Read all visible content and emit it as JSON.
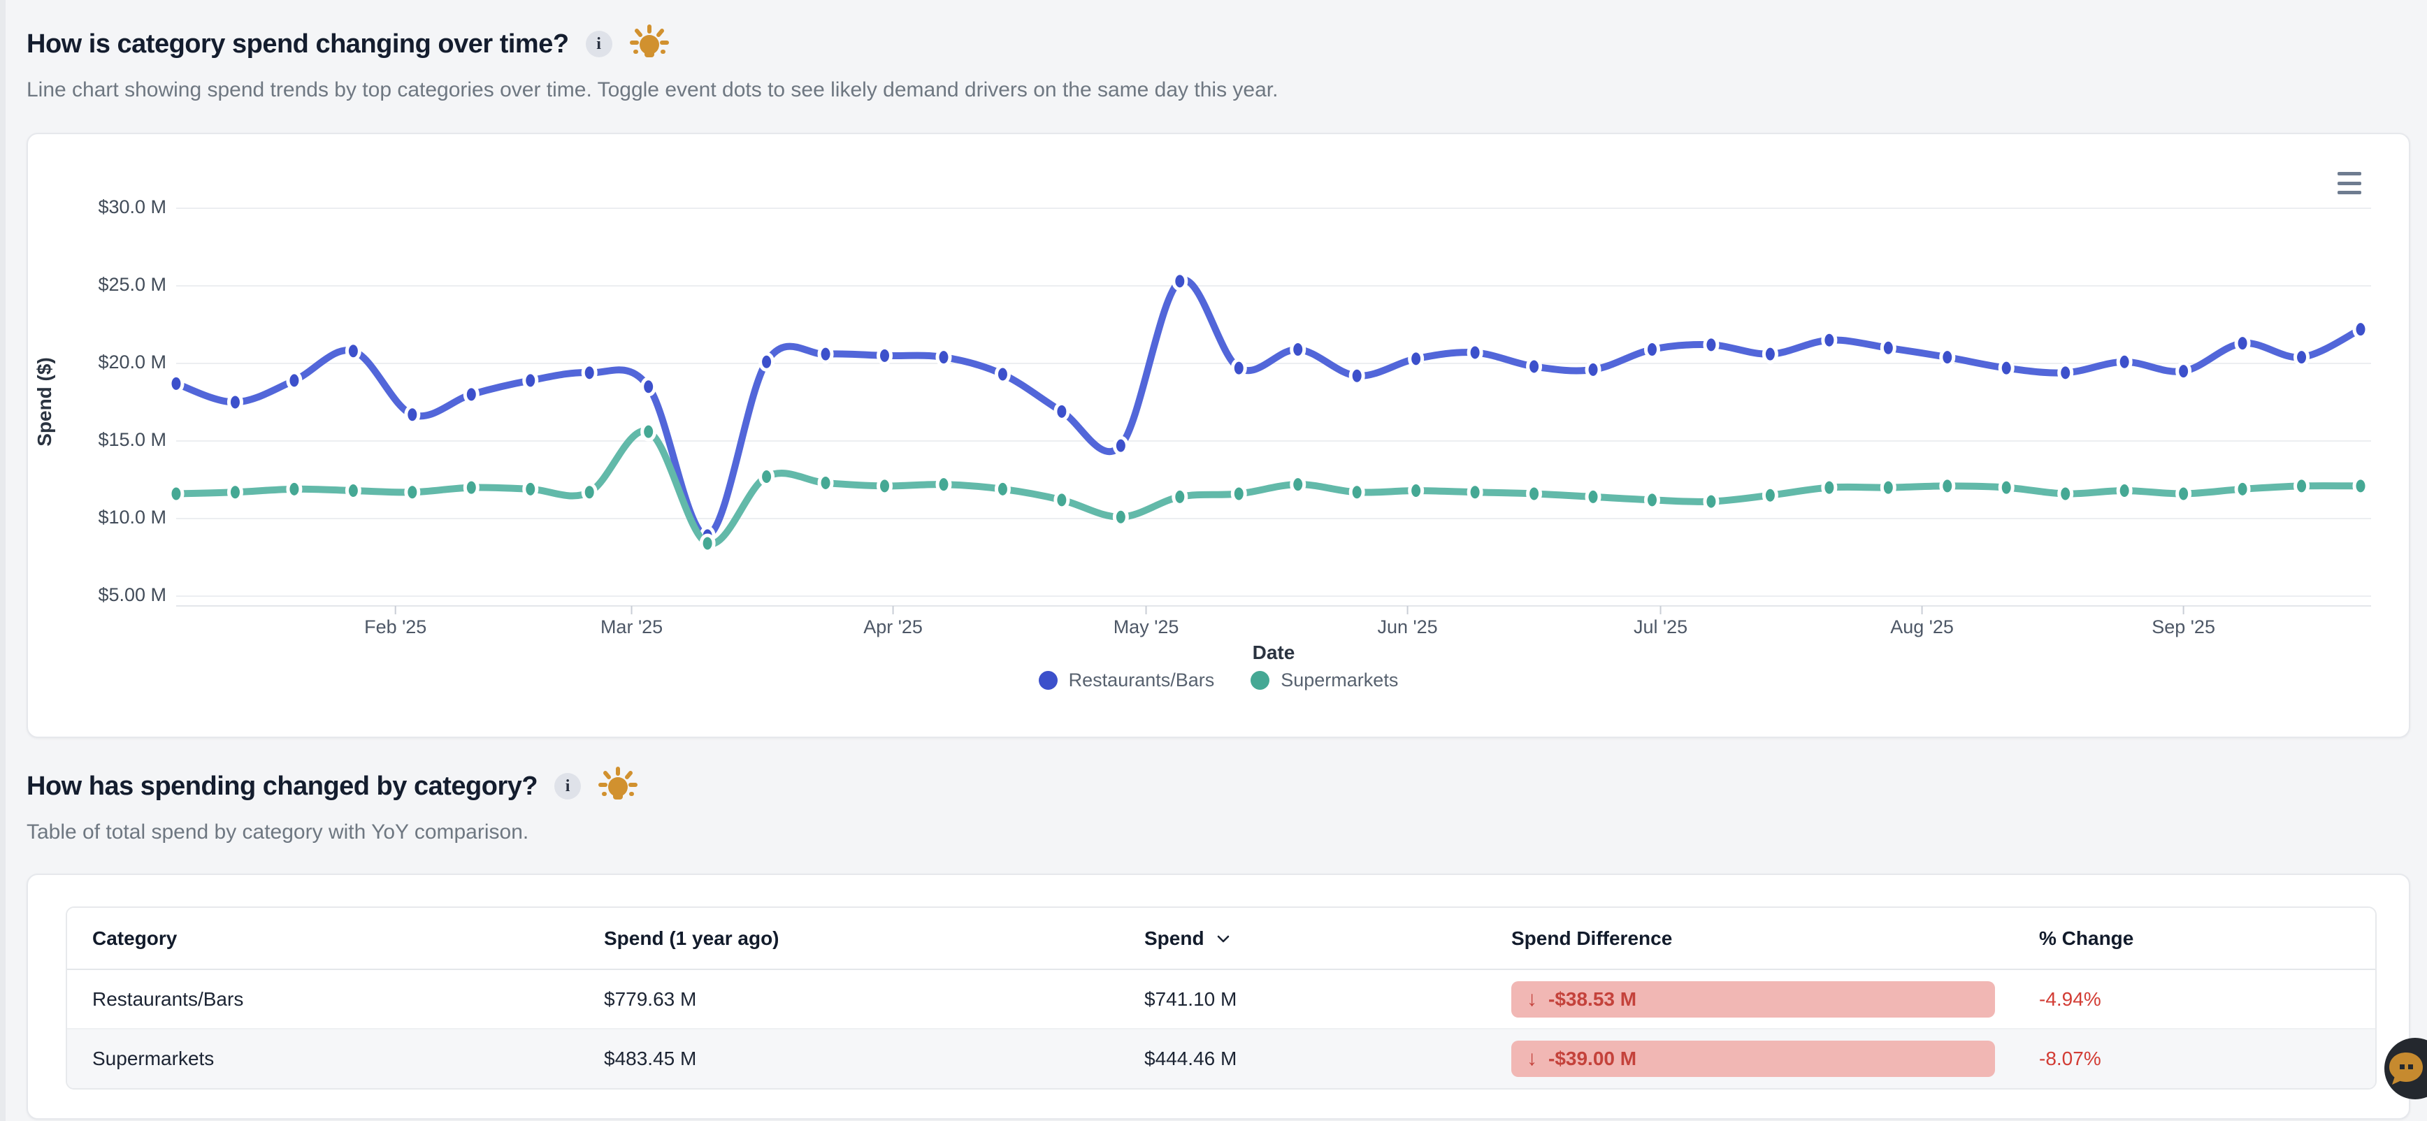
{
  "section1": {
    "title": "How is category spend changing over time?",
    "info_icon": "i",
    "idea_icon": "lightbulb-icon",
    "subtitle": "Line chart showing spend trends by top categories over time. Toggle event dots to see likely demand drivers on the same day this year."
  },
  "chart_data": {
    "type": "line",
    "xlabel": "Date",
    "ylabel": "Spend ($)",
    "y_ticks": [
      "$30.0 M",
      "$25.0 M",
      "$20.0 M",
      "$15.0 M",
      "$10.0 M",
      "$5.00 M"
    ],
    "y_tick_values": [
      30,
      25,
      20,
      15,
      10,
      5
    ],
    "ylim": [
      3.5,
      32
    ],
    "grid": "horizontal",
    "legend_position": "bottom",
    "x_ticks": [
      {
        "label": "Feb '25",
        "date": "2025-02-01"
      },
      {
        "label": "Mar '25",
        "date": "2025-03-01"
      },
      {
        "label": "Apr '25",
        "date": "2025-04-01"
      },
      {
        "label": "May '25",
        "date": "2025-05-01"
      },
      {
        "label": "Jun '25",
        "date": "2025-06-01"
      },
      {
        "label": "Jul '25",
        "date": "2025-07-01"
      },
      {
        "label": "Aug '25",
        "date": "2025-08-01"
      },
      {
        "label": "Sep '25",
        "date": "2025-09-01"
      }
    ],
    "x": [
      "2025-01-06",
      "2025-01-13",
      "2025-01-20",
      "2025-01-27",
      "2025-02-03",
      "2025-02-10",
      "2025-02-17",
      "2025-02-24",
      "2025-03-03",
      "2025-03-10",
      "2025-03-17",
      "2025-03-24",
      "2025-03-31",
      "2025-04-07",
      "2025-04-14",
      "2025-04-21",
      "2025-04-28",
      "2025-05-05",
      "2025-05-12",
      "2025-05-19",
      "2025-05-26",
      "2025-06-02",
      "2025-06-09",
      "2025-06-16",
      "2025-06-23",
      "2025-06-30",
      "2025-07-07",
      "2025-07-14",
      "2025-07-21",
      "2025-07-28",
      "2025-08-04",
      "2025-08-11",
      "2025-08-18",
      "2025-08-25",
      "2025-09-01",
      "2025-09-08",
      "2025-09-15",
      "2025-09-22"
    ],
    "series": [
      {
        "name": "Restaurants/Bars",
        "color": "#5266d9",
        "marker_color": "#3c50cb",
        "values": [
          18.7,
          17.5,
          18.9,
          20.8,
          16.7,
          18.0,
          18.9,
          19.4,
          18.5,
          8.9,
          20.1,
          20.6,
          20.5,
          20.4,
          19.3,
          16.9,
          14.7,
          25.3,
          19.7,
          20.9,
          19.2,
          20.3,
          20.7,
          19.8,
          19.6,
          20.9,
          21.2,
          20.6,
          21.5,
          21.0,
          20.4,
          19.7,
          19.4,
          20.1,
          19.5,
          21.3,
          20.4,
          22.2
        ]
      },
      {
        "name": "Supermarkets",
        "color": "#62b9a9",
        "marker_color": "#45a894",
        "values": [
          11.6,
          11.7,
          11.9,
          11.8,
          11.7,
          12.0,
          11.9,
          11.7,
          15.6,
          8.4,
          12.7,
          12.3,
          12.1,
          12.2,
          11.9,
          11.2,
          10.1,
          11.4,
          11.6,
          12.2,
          11.7,
          11.8,
          11.7,
          11.6,
          11.4,
          11.2,
          11.1,
          11.5,
          12.0,
          12.0,
          12.1,
          12.0,
          11.6,
          11.8,
          11.6,
          11.9,
          12.1,
          12.1
        ]
      }
    ]
  },
  "chart_menu": {
    "icon": "hamburger-menu-icon"
  },
  "section2": {
    "title": "How has spending changed by category?",
    "info_icon": "i",
    "idea_icon": "lightbulb-icon",
    "subtitle": "Table of total spend by category with YoY comparison."
  },
  "table": {
    "columns": [
      {
        "label": "Category",
        "sortable": false
      },
      {
        "label": "Spend (1 year ago)",
        "sortable": false
      },
      {
        "label": "Spend",
        "sortable": true,
        "sort_icon": "chevron-down-icon"
      },
      {
        "label": "Spend Difference",
        "sortable": false
      },
      {
        "label": "% Change",
        "sortable": false
      }
    ],
    "rows": [
      {
        "category": "Restaurants/Bars",
        "spend_1y_ago": "$779.63 M",
        "spend": "$741.10 M",
        "spend_difference": "-$38.53 M",
        "spend_difference_icon": "arrow-down-icon",
        "pct_change": "-4.94%"
      },
      {
        "category": "Supermarkets",
        "spend_1y_ago": "$483.45 M",
        "spend": "$444.46 M",
        "spend_difference": "-$39.00 M",
        "spend_difference_icon": "arrow-down-icon",
        "pct_change": "-8.07%"
      }
    ],
    "negative_badge_bg": "#f1b7b4",
    "negative_text_color": "#c4423b"
  },
  "chat_button": {
    "icon": "chat-bubble-icon",
    "bg": "#24282e",
    "icon_color": "#c68a2f"
  }
}
